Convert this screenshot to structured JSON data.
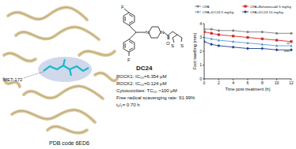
{
  "protein": {
    "residue": "MET-172",
    "pdb": "PDB code 6ED6"
  },
  "compound": {
    "name": "DC24",
    "atoms": [
      "F",
      "F",
      "N",
      "N",
      "O",
      "S",
      "S"
    ],
    "properties": [
      "ROCK1: IC₅₀=6.354 μM",
      "ROCK2: IC₅₀=0.124 μM",
      "Cytotoxicities: TC₅₀ >100 μM",
      "Free radical scavenging rate: 91.99%",
      "t₁/₂= 0.70 h"
    ]
  },
  "chart_data": {
    "type": "line",
    "x_label": "Time post treatment (h)",
    "y_label": "Foot swelling (mm)",
    "x": [
      0,
      1,
      2,
      4,
      6,
      8,
      10,
      12
    ],
    "series": [
      {
        "name": "CFA",
        "color": "#808080",
        "marker": "circle",
        "values": [
          3.6,
          3.6,
          3.5,
          3.5,
          3.4,
          3.4,
          3.3,
          3.3
        ]
      },
      {
        "name": "CFA+Belumosudil 5 mg/kg",
        "color": "#d62728",
        "marker": "square",
        "values": [
          3.4,
          3.3,
          3.2,
          3.1,
          3.0,
          2.9,
          2.8,
          2.7
        ]
      },
      {
        "name": "CFA+DC24 5 mg/kg",
        "color": "#5b9bd5",
        "marker": "triangle",
        "values": [
          3.0,
          2.9,
          2.8,
          2.7,
          2.6,
          2.5,
          2.4,
          2.4
        ]
      },
      {
        "name": "CFA+DC24 10 mg/kg",
        "color": "#1f3f8f",
        "marker": "diamond",
        "values": [
          2.7,
          2.5,
          2.4,
          2.3,
          2.2,
          2.2,
          2.1,
          2.1
        ]
      }
    ],
    "xlim": [
      0,
      12
    ],
    "xticks": [
      0,
      2,
      4,
      6,
      8,
      10,
      12
    ],
    "ylim": [
      0,
      4
    ],
    "yticks": [
      0,
      1,
      2,
      3,
      4
    ],
    "annotations": [
      "**",
      "****"
    ],
    "legend": "top"
  }
}
